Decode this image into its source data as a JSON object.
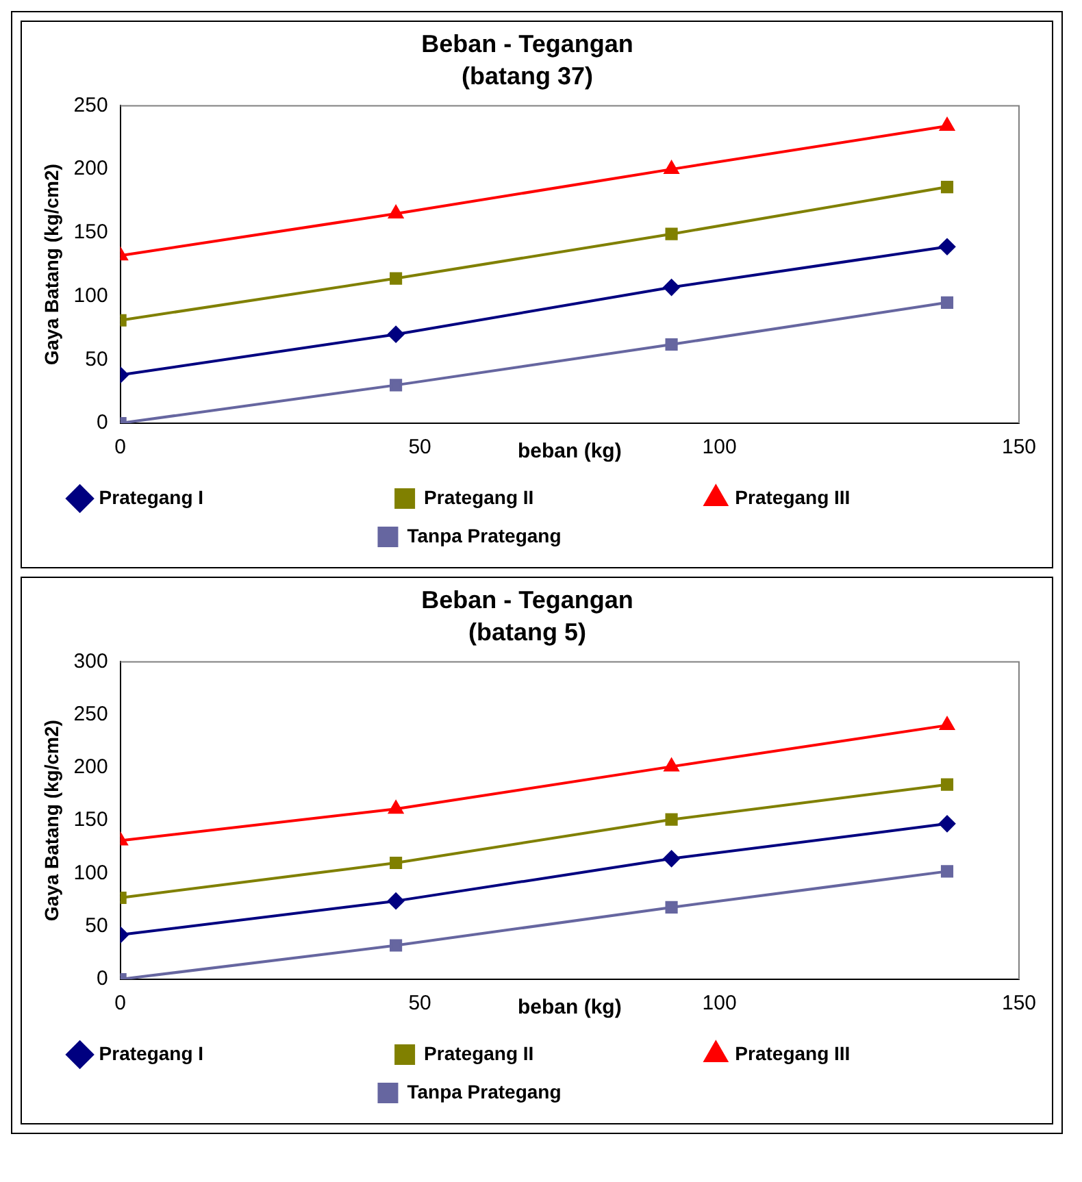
{
  "chart_data": [
    {
      "type": "line",
      "title": "Beban - Tegangan",
      "subtitle": "(batang 37)",
      "xlabel": "beban (kg)",
      "ylabel": "Gaya Batang (kg/cm2)",
      "x": [
        0,
        46,
        92,
        138
      ],
      "xlim": [
        0,
        150
      ],
      "xticks": [
        0,
        50,
        100,
        150
      ],
      "ylim": [
        0,
        250
      ],
      "yticks": [
        0,
        50,
        100,
        150,
        200,
        250
      ],
      "grid": false,
      "legend": "bottom",
      "line_style": "solid",
      "series": [
        {
          "name": "Prategang I",
          "color": "#000080",
          "marker": "diamond",
          "values": [
            38,
            70,
            107,
            139
          ]
        },
        {
          "name": "Prategang II",
          "color": "#808000",
          "marker": "square",
          "values": [
            81,
            114,
            149,
            186
          ]
        },
        {
          "name": "Prategang III",
          "color": "#ff0000",
          "marker": "triangle",
          "values": [
            132,
            165,
            200,
            234
          ]
        },
        {
          "name": "Tanpa Prategang",
          "color": "#6666a0",
          "marker": "square",
          "values": [
            0,
            30,
            62,
            95
          ]
        }
      ]
    },
    {
      "type": "line",
      "title": "Beban - Tegangan",
      "subtitle": "(batang 5)",
      "xlabel": "beban (kg)",
      "ylabel": "Gaya Batang (kg/cm2)",
      "x": [
        0,
        46,
        92,
        138
      ],
      "xlim": [
        0,
        150
      ],
      "xticks": [
        0,
        50,
        100,
        150
      ],
      "ylim": [
        0,
        300
      ],
      "yticks": [
        0,
        50,
        100,
        150,
        200,
        250,
        300
      ],
      "grid": false,
      "legend": "bottom",
      "line_style": "solid",
      "series": [
        {
          "name": "Prategang I",
          "color": "#000080",
          "marker": "diamond",
          "values": [
            42,
            74,
            114,
            147
          ]
        },
        {
          "name": "Prategang II",
          "color": "#808000",
          "marker": "square",
          "values": [
            77,
            110,
            151,
            184
          ]
        },
        {
          "name": "Prategang III",
          "color": "#ff0000",
          "marker": "triangle",
          "values": [
            131,
            161,
            201,
            240
          ]
        },
        {
          "name": "Tanpa Prategang",
          "color": "#6666a0",
          "marker": "square",
          "values": [
            0,
            32,
            68,
            102
          ]
        }
      ]
    }
  ]
}
